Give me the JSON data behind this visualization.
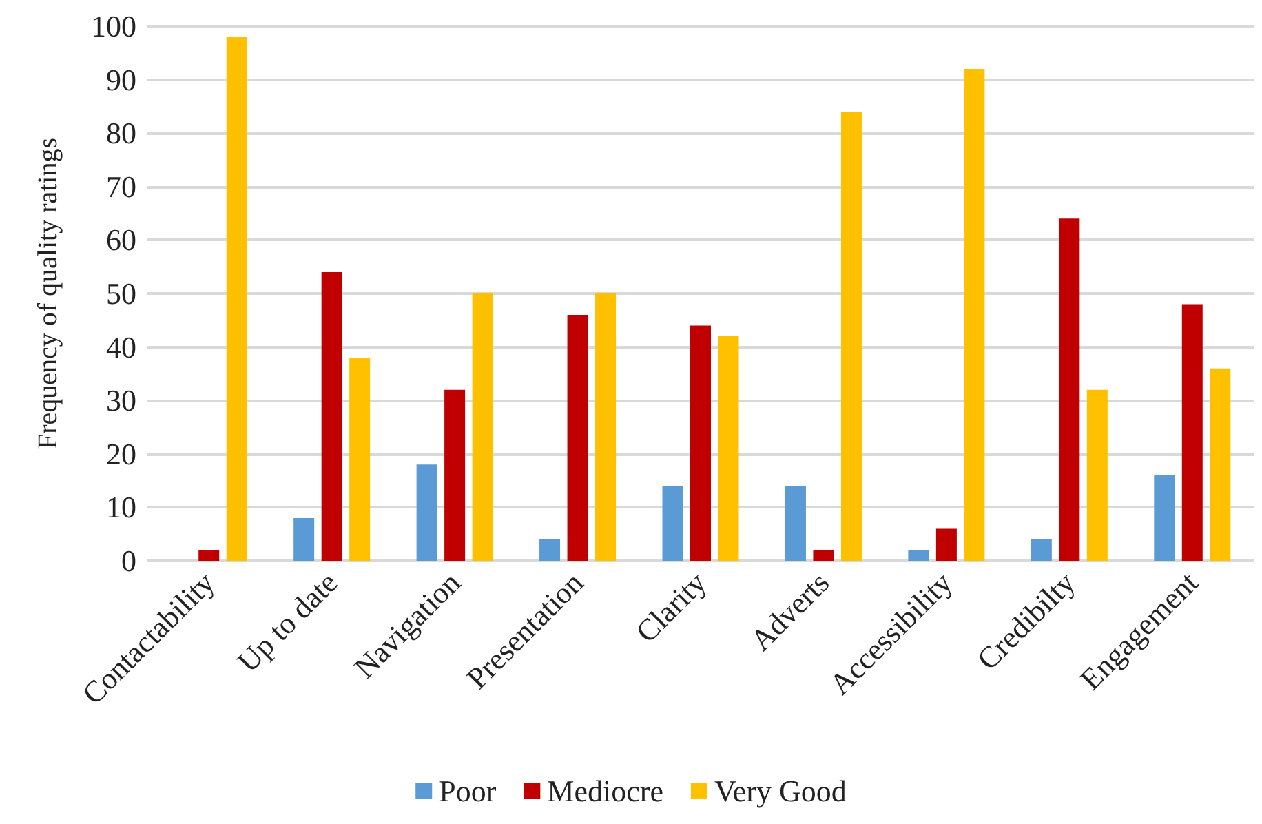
{
  "chart_data": {
    "type": "bar",
    "ylabel": "Frequency of quality ratings",
    "categories": [
      "Contactability",
      "Up to date",
      "Navigation",
      "Presentation",
      "Clarity",
      "Adverts",
      "Accessibility",
      "Credibilty",
      "Engagement"
    ],
    "series": [
      {
        "name": "Poor",
        "color": "#5b9bd5",
        "values": [
          0,
          8,
          18,
          4,
          14,
          14,
          2,
          4,
          16
        ]
      },
      {
        "name": "Mediocre",
        "color": "#c00000",
        "values": [
          2,
          54,
          32,
          46,
          44,
          2,
          6,
          64,
          48
        ]
      },
      {
        "name": "Very Good",
        "color": "#ffc000",
        "values": [
          98,
          38,
          50,
          50,
          42,
          84,
          92,
          32,
          36
        ]
      }
    ],
    "ylim": [
      0,
      100
    ],
    "yticks": [
      0,
      10,
      20,
      30,
      40,
      50,
      60,
      70,
      80,
      90,
      100
    ],
    "grid": "y",
    "legend": "bottom"
  }
}
